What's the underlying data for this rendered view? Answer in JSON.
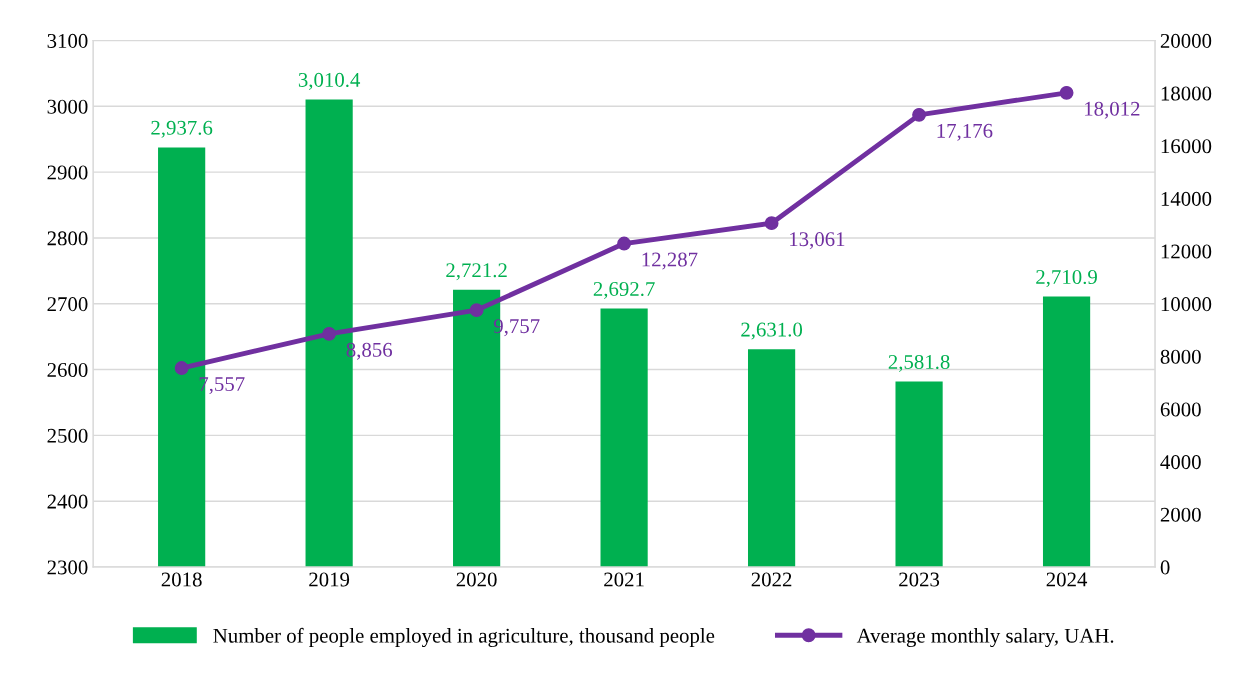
{
  "chart_data": {
    "type": "bar",
    "categories": [
      "2018",
      "2019",
      "2020",
      "2021",
      "2022",
      "2023",
      "2024"
    ],
    "series": [
      {
        "name": "Number of people employed in agriculture, thousand people",
        "color": "#00b050",
        "values": [
          2937.6,
          3010.4,
          2721.2,
          2692.7,
          2631.0,
          2581.8,
          2710.9
        ],
        "value_labels": [
          "2,937.6",
          "3,010.4",
          "2,721.2",
          "2,692.7",
          "2,631.0",
          "2,581.8",
          "2,710.9"
        ]
      },
      {
        "name": "Average monthly salary, UAH.",
        "type": "line",
        "axis": "y2",
        "color": "#7030a0",
        "values": [
          7557,
          8856,
          9757,
          12287,
          13061,
          17176,
          18012
        ],
        "value_labels": [
          "7,557",
          "8,856",
          "9,757",
          "12,287",
          "13,061",
          "17,176",
          "18,012"
        ]
      }
    ],
    "ylim": [
      2300,
      3100
    ],
    "yticks": [
      2300,
      2400,
      2500,
      2600,
      2700,
      2800,
      2900,
      3000,
      3100
    ],
    "y2lim": [
      0,
      20000
    ],
    "y2ticks": [
      0,
      2000,
      4000,
      6000,
      8000,
      10000,
      12000,
      14000,
      16000,
      18000,
      20000
    ],
    "grid": "y",
    "legend": "bottom",
    "marker": "circle",
    "line_style": "solid"
  }
}
